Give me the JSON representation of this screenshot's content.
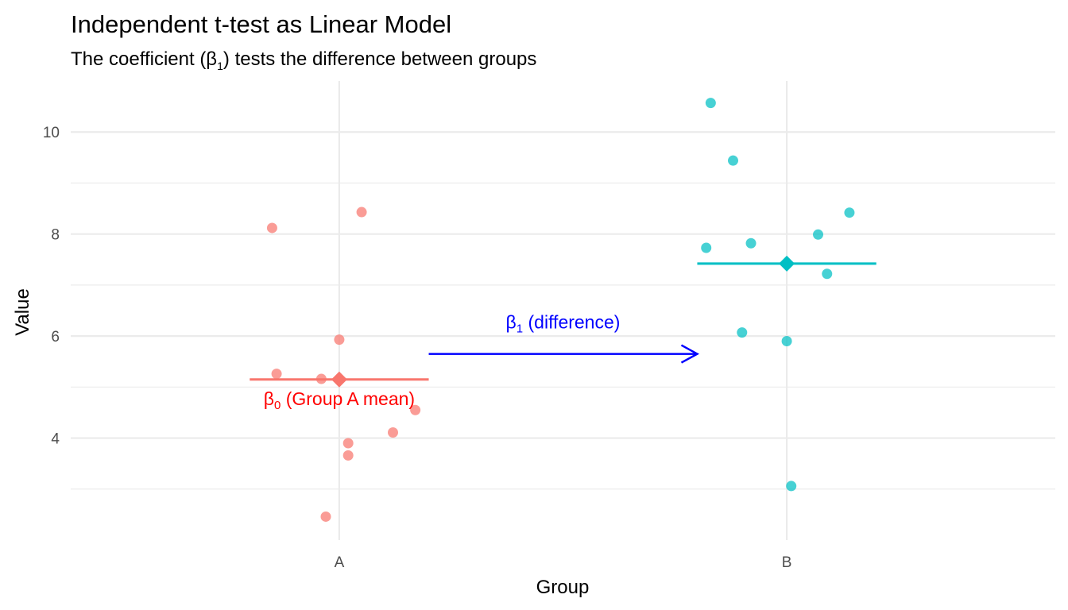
{
  "chart_data": {
    "type": "scatter",
    "title": "Independent t-test as Linear Model",
    "subtitle": {
      "pre": "The coefficient (β",
      "sub": "1",
      "post": ") tests the difference between groups"
    },
    "xlabel": "Group",
    "ylabel": "Value",
    "categories": [
      "A",
      "B"
    ],
    "ylim": [
      2.0,
      11.0
    ],
    "yticks": [
      4,
      6,
      8,
      10
    ],
    "grid": true,
    "legend": "none",
    "series": [
      {
        "group": "A",
        "color": "#F8766D",
        "mean": 5.15,
        "points": [
          {
            "x": -0.15,
            "y": 8.12
          },
          {
            "x": 0.05,
            "y": 8.43
          },
          {
            "x": 0.0,
            "y": 5.93
          },
          {
            "x": -0.14,
            "y": 5.26
          },
          {
            "x": -0.04,
            "y": 5.16
          },
          {
            "x": 0.17,
            "y": 4.55
          },
          {
            "x": 0.12,
            "y": 4.11
          },
          {
            "x": 0.02,
            "y": 3.9
          },
          {
            "x": 0.02,
            "y": 3.66
          },
          {
            "x": -0.03,
            "y": 2.46
          }
        ]
      },
      {
        "group": "B",
        "color": "#00BFC4",
        "mean": 7.42,
        "points": [
          {
            "x": -0.17,
            "y": 10.57
          },
          {
            "x": -0.12,
            "y": 9.44
          },
          {
            "x": 0.14,
            "y": 8.42
          },
          {
            "x": 0.07,
            "y": 7.99
          },
          {
            "x": -0.08,
            "y": 7.82
          },
          {
            "x": -0.18,
            "y": 7.73
          },
          {
            "x": 0.09,
            "y": 7.22
          },
          {
            "x": -0.1,
            "y": 6.07
          },
          {
            "x": 0.0,
            "y": 5.9
          },
          {
            "x": 0.01,
            "y": 3.06
          }
        ]
      }
    ],
    "annotations": {
      "beta0": {
        "symbol": "β",
        "sub": "0",
        "text": " (Group A mean)",
        "color": "#FF0000",
        "x": 1.0,
        "y": 4.65
      },
      "beta1": {
        "symbol": "β",
        "sub": "1",
        "text": " (difference)",
        "color": "#0000FF",
        "x": 1.5,
        "y": 6.15
      },
      "arrow": {
        "x_start": 1.2,
        "x_end": 1.8,
        "y": 5.65,
        "color": "#0000FF"
      }
    }
  }
}
